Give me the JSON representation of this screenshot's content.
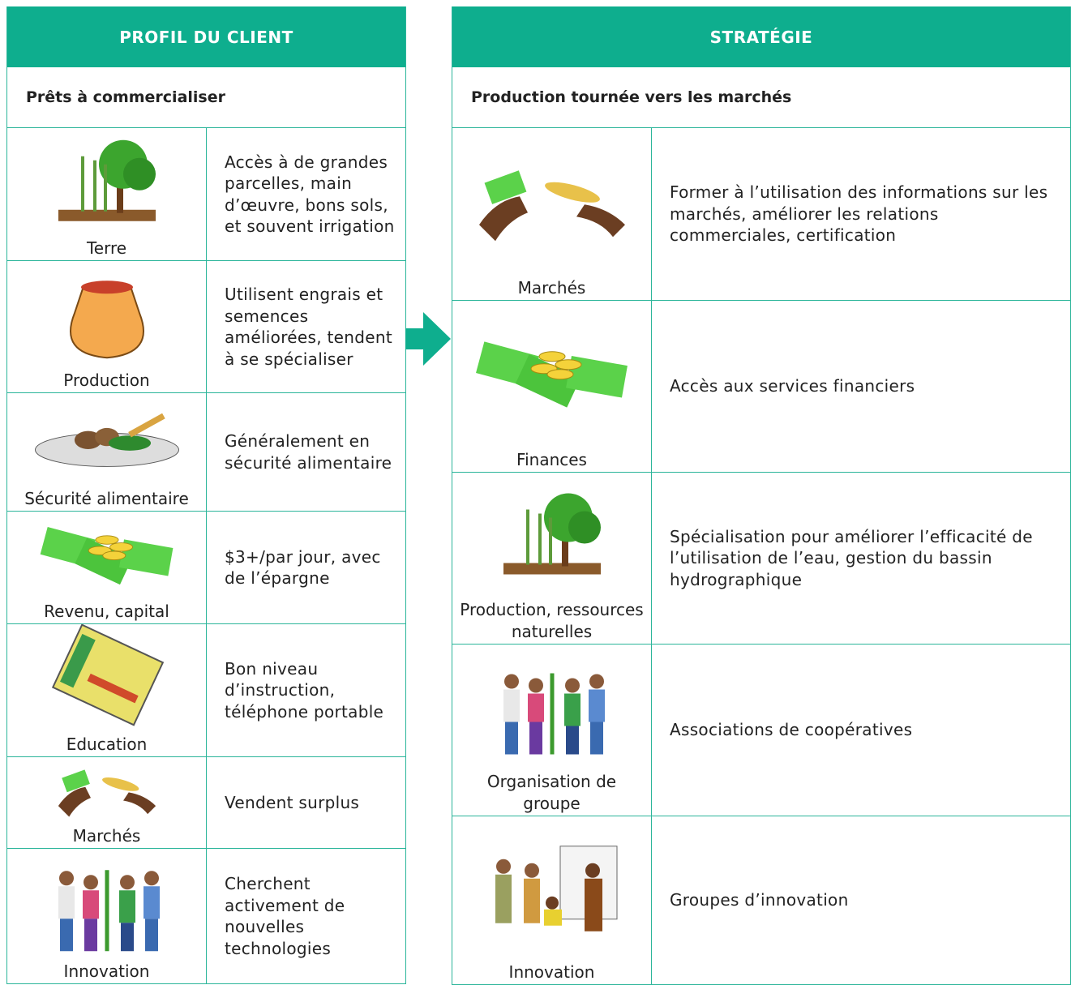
{
  "left": {
    "header": "PROFIL DU CLIENT",
    "subheader": "Prêts à commercialiser",
    "rows": [
      {
        "label": "Terre",
        "text": "Accès à de grandes parcelles, main d’œuvre, bons sols, et souvent irrigation"
      },
      {
        "label": "Production",
        "text": "Utilisent engrais et semences améliorées, tendent à se spécialiser"
      },
      {
        "label": "Sécurité alimentaire",
        "text": "Généralement en sécurité alimentaire"
      },
      {
        "label": "Revenu, capital",
        "text": "$3+/par jour, avec de l’épargne"
      },
      {
        "label": "Education",
        "text": "Bon niveau d’instruction, téléphone portable"
      },
      {
        "label": "Marchés",
        "text": "Vendent surplus"
      },
      {
        "label": "Innovation",
        "text": "Cherchent activement de nouvelles technologies"
      }
    ]
  },
  "right": {
    "header": "STRATÉGIE",
    "subheader": "Production tournée vers les marchés",
    "rows": [
      {
        "label": "Marchés",
        "text": "Former à l’utilisation des informations sur les marchés, améliorer les relations commerciales, certification"
      },
      {
        "label": "Finances",
        "text": "Accès aux services financiers"
      },
      {
        "label": "Production, ressources naturelles",
        "text": "Spécialisation pour améliorer l’efficacité de l’utilisation de l’eau, gestion du bassin hydrographique"
      },
      {
        "label": "Organisation de groupe",
        "text": "Associations de coopératives"
      },
      {
        "label": "Innovation",
        "text": "Groupes d’innovation"
      }
    ]
  }
}
